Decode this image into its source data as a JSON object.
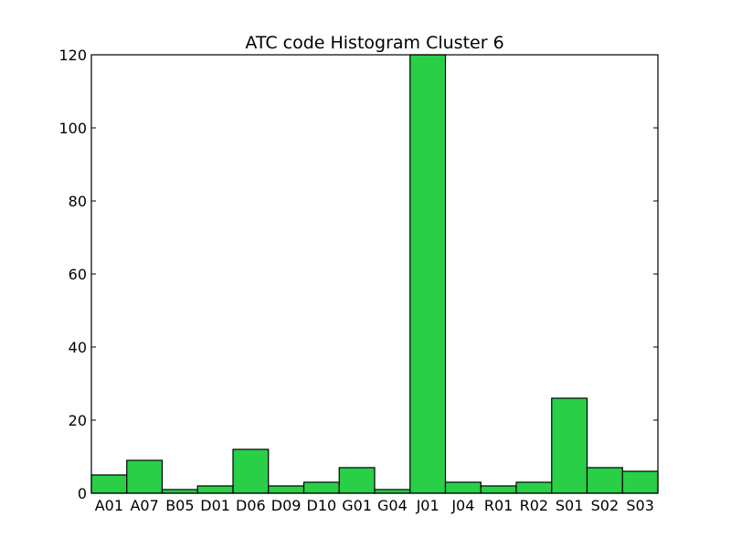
{
  "chart_data": {
    "type": "bar",
    "title": "ATC code Histogram Cluster 6",
    "xlabel": "",
    "ylabel": "",
    "categories": [
      "A01",
      "A07",
      "B05",
      "D01",
      "D06",
      "D09",
      "D10",
      "G01",
      "G04",
      "J01",
      "J04",
      "R01",
      "R02",
      "S01",
      "S02",
      "S03"
    ],
    "values": [
      5,
      9,
      1,
      2,
      12,
      2,
      3,
      7,
      1,
      120,
      3,
      2,
      3,
      26,
      7,
      6
    ],
    "ylim": [
      0,
      120
    ],
    "yticks": [
      0,
      20,
      40,
      60,
      80,
      100,
      120
    ],
    "grid": false,
    "legend": "none",
    "bar_color": "#29cf47"
  }
}
